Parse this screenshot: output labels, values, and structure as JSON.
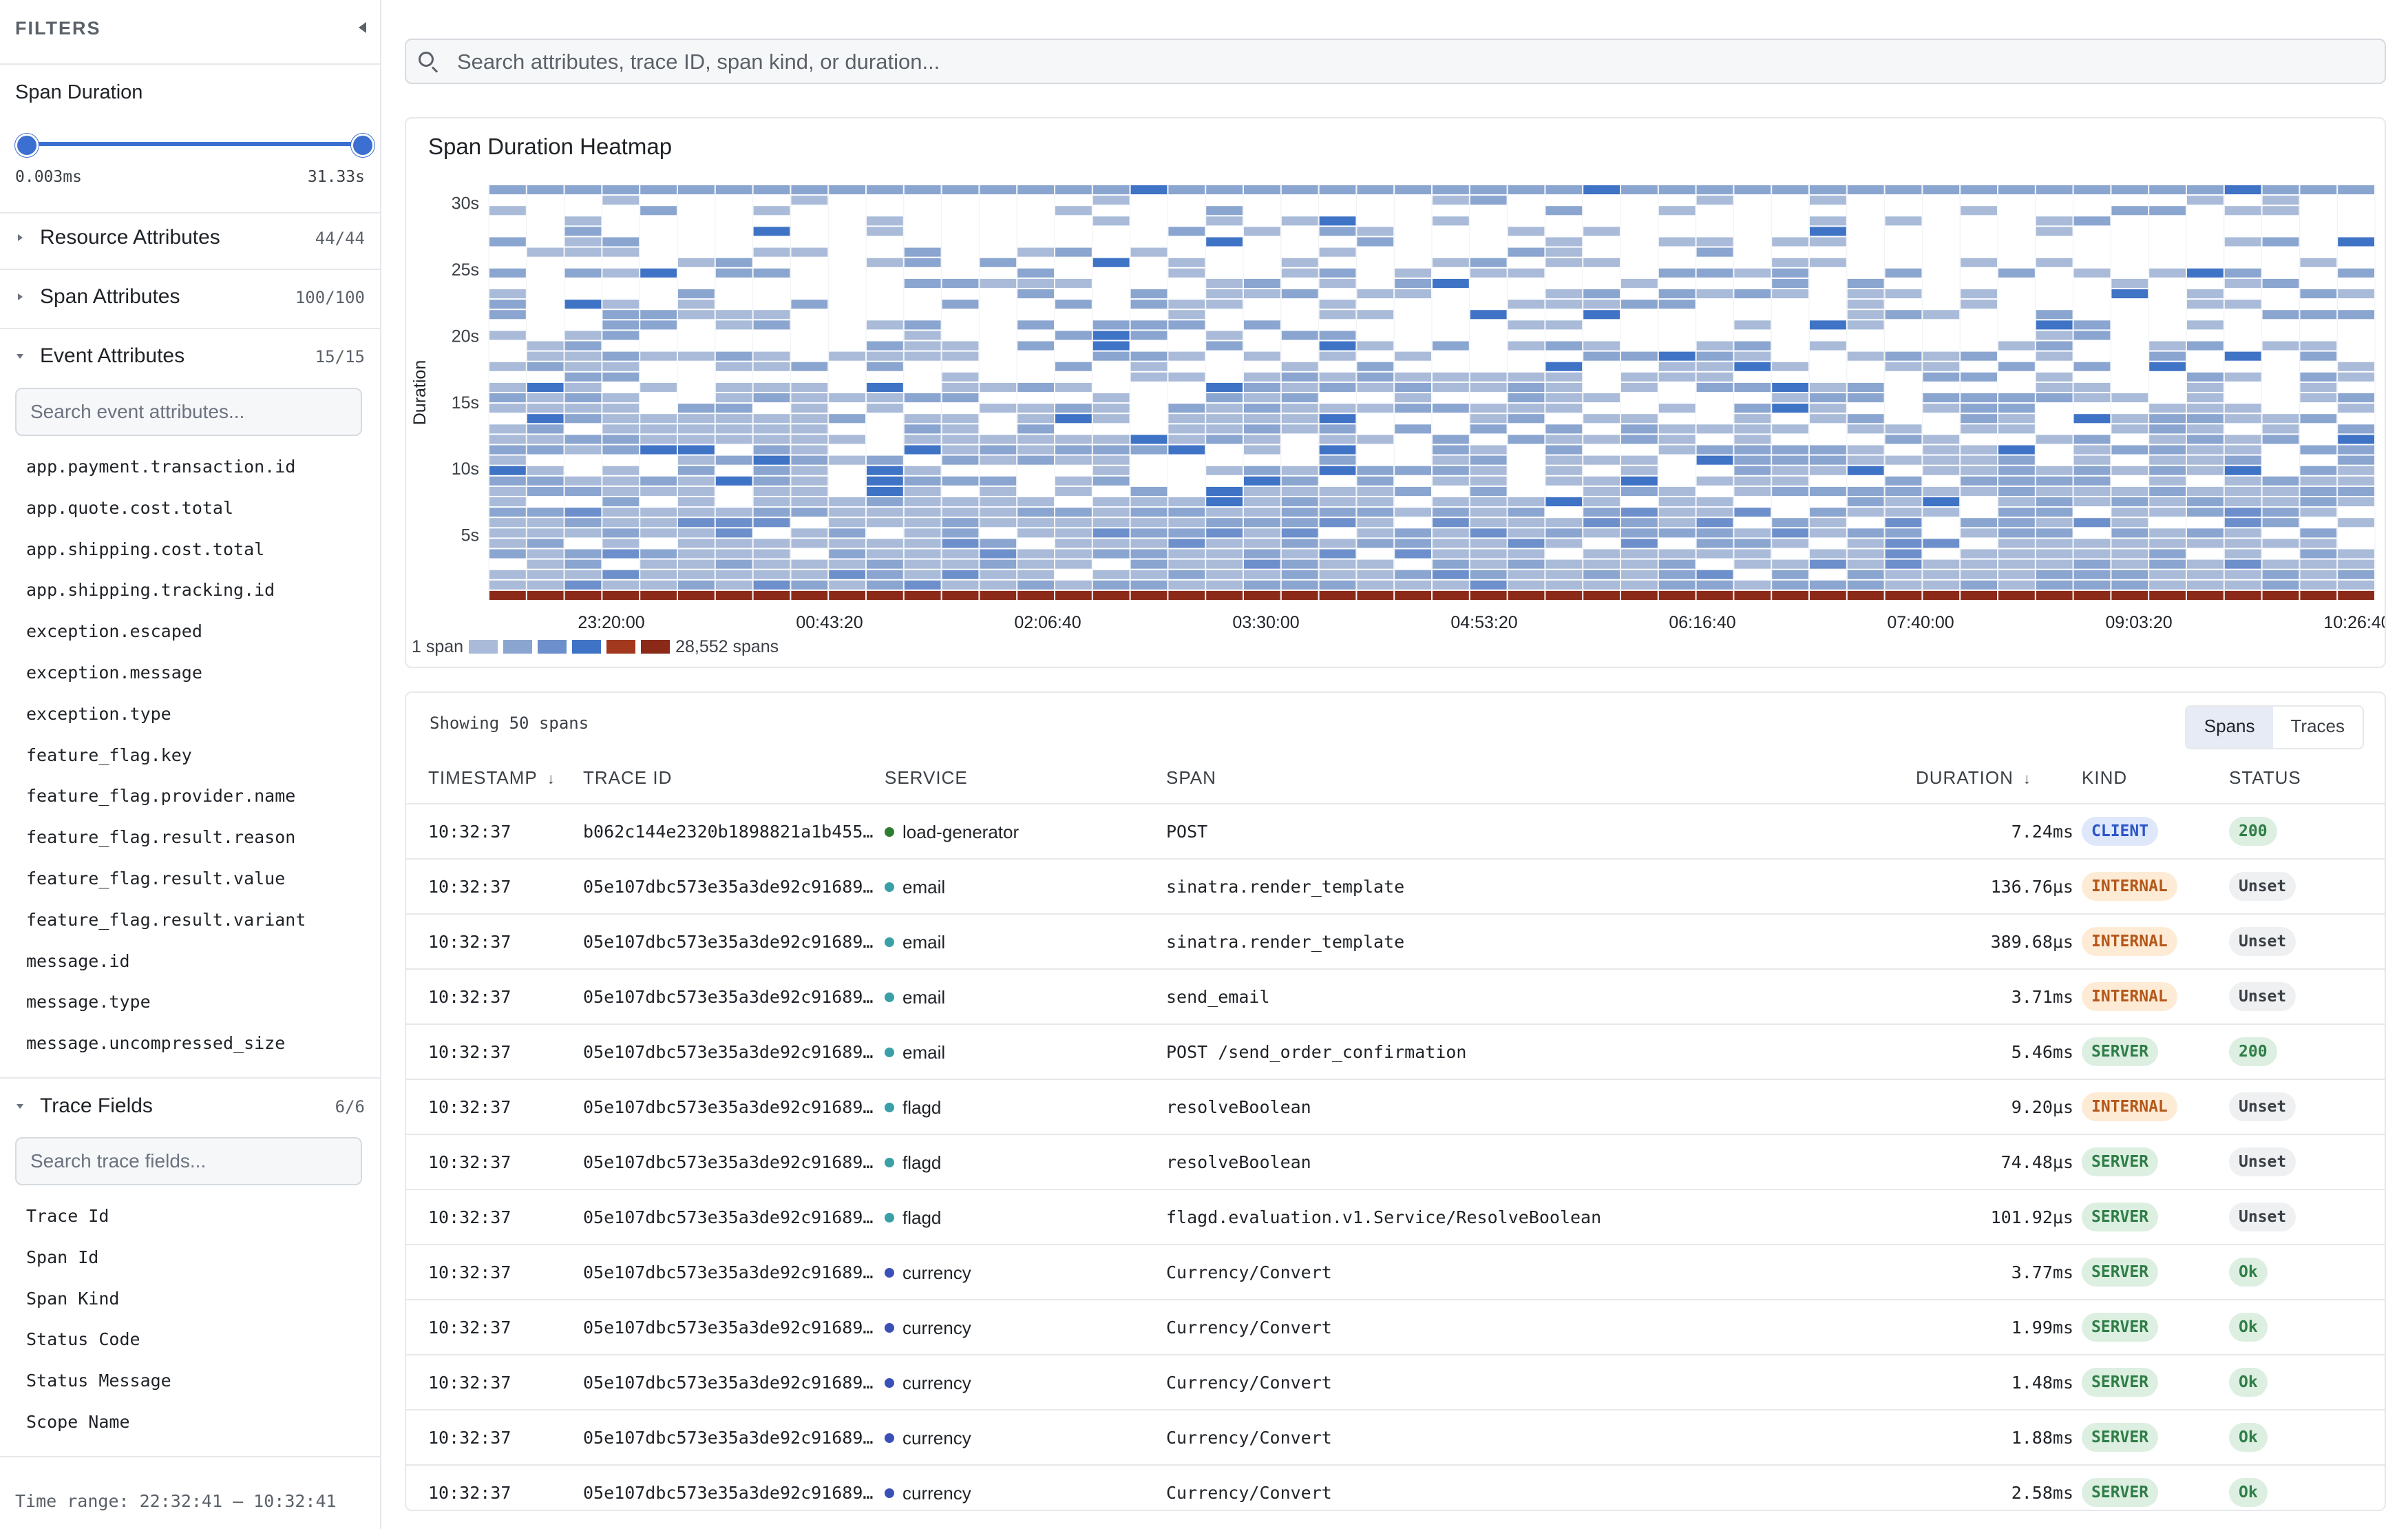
{
  "sidebar": {
    "title": "FILTERS",
    "span_duration": {
      "title": "Span Duration",
      "min_label": "0.003ms",
      "max_label": "31.33s",
      "range": [
        0,
        1
      ]
    },
    "groups": {
      "resource": {
        "label": "Resource Attributes",
        "count": "44/44"
      },
      "span": {
        "label": "Span Attributes",
        "count": "100/100"
      },
      "event": {
        "label": "Event Attributes",
        "count": "15/15",
        "search_placeholder": "Search event attributes..."
      },
      "trace": {
        "label": "Trace Fields",
        "count": "6/6",
        "search_placeholder": "Search trace fields..."
      }
    },
    "event_attributes": [
      "app.payment.transaction.id",
      "app.quote.cost.total",
      "app.shipping.cost.total",
      "app.shipping.tracking.id",
      "exception.escaped",
      "exception.message",
      "exception.type",
      "feature_flag.key",
      "feature_flag.provider.name",
      "feature_flag.result.reason",
      "feature_flag.result.value",
      "feature_flag.result.variant",
      "message.id",
      "message.type",
      "message.uncompressed_size"
    ],
    "trace_fields": [
      "Trace Id",
      "Span Id",
      "Span Kind",
      "Status Code",
      "Status Message",
      "Scope Name"
    ],
    "footer": "Time range: 22:32:41 – 10:32:41"
  },
  "search": {
    "placeholder": "Search attributes, trace ID, span kind, or duration..."
  },
  "chart_data": {
    "type": "heatmap",
    "title": "Span Duration Heatmap",
    "ylabel": "Duration",
    "y_ticks": [
      "30s",
      "25s",
      "20s",
      "15s",
      "10s",
      "5s"
    ],
    "y_tick_values": [
      30,
      25,
      20,
      15,
      10,
      5
    ],
    "ylim": [
      0,
      31.33
    ],
    "x_ticks": [
      "23:20:00",
      "00:43:20",
      "02:06:40",
      "03:30:00",
      "04:53:20",
      "06:16:40",
      "07:40:00",
      "09:03:20",
      "10:26:40"
    ],
    "columns": 50,
    "rows": 40,
    "legend_min": "1 span",
    "legend_max": "28,552 spans",
    "color_scale": [
      "#a9bbd9",
      "#8aa5d0",
      "#6d8fcb",
      "#3f73c6",
      "#a2391e",
      "#8c2a1a"
    ],
    "grid": true
  },
  "table": {
    "showing": "Showing 50 spans",
    "view_toggle": {
      "spans": "Spans",
      "traces": "Traces"
    },
    "columns": {
      "timestamp": "TIMESTAMP",
      "trace_id": "TRACE ID",
      "service": "SERVICE",
      "span": "SPAN",
      "duration": "DURATION",
      "kind": "KIND",
      "status": "STATUS"
    },
    "service_colors": {
      "load-generator": "#2e7d32",
      "email": "#3aa0a8",
      "flagd": "#3aa0a8",
      "currency": "#3b4fb8"
    },
    "rows": [
      {
        "timestamp": "10:32:37",
        "trace_id": "b062c144e2320b1898821a1b455…",
        "service": "load-generator",
        "span": "POST",
        "duration": "7.24ms",
        "kind": "CLIENT",
        "status": "200"
      },
      {
        "timestamp": "10:32:37",
        "trace_id": "05e107dbc573e35a3de92c91689…",
        "service": "email",
        "span": "sinatra.render_template",
        "duration": "136.76μs",
        "kind": "INTERNAL",
        "status": "Unset"
      },
      {
        "timestamp": "10:32:37",
        "trace_id": "05e107dbc573e35a3de92c91689…",
        "service": "email",
        "span": "sinatra.render_template",
        "duration": "389.68μs",
        "kind": "INTERNAL",
        "status": "Unset"
      },
      {
        "timestamp": "10:32:37",
        "trace_id": "05e107dbc573e35a3de92c91689…",
        "service": "email",
        "span": "send_email",
        "duration": "3.71ms",
        "kind": "INTERNAL",
        "status": "Unset"
      },
      {
        "timestamp": "10:32:37",
        "trace_id": "05e107dbc573e35a3de92c91689…",
        "service": "email",
        "span": "POST /send_order_confirmation",
        "duration": "5.46ms",
        "kind": "SERVER",
        "status": "200"
      },
      {
        "timestamp": "10:32:37",
        "trace_id": "05e107dbc573e35a3de92c91689…",
        "service": "flagd",
        "span": "resolveBoolean",
        "duration": "9.20μs",
        "kind": "INTERNAL",
        "status": "Unset"
      },
      {
        "timestamp": "10:32:37",
        "trace_id": "05e107dbc573e35a3de92c91689…",
        "service": "flagd",
        "span": "resolveBoolean",
        "duration": "74.48μs",
        "kind": "SERVER",
        "status": "Unset"
      },
      {
        "timestamp": "10:32:37",
        "trace_id": "05e107dbc573e35a3de92c91689…",
        "service": "flagd",
        "span": "flagd.evaluation.v1.Service/ResolveBoolean",
        "duration": "101.92μs",
        "kind": "SERVER",
        "status": "Unset"
      },
      {
        "timestamp": "10:32:37",
        "trace_id": "05e107dbc573e35a3de92c91689…",
        "service": "currency",
        "span": "Currency/Convert",
        "duration": "3.77ms",
        "kind": "SERVER",
        "status": "Ok"
      },
      {
        "timestamp": "10:32:37",
        "trace_id": "05e107dbc573e35a3de92c91689…",
        "service": "currency",
        "span": "Currency/Convert",
        "duration": "1.99ms",
        "kind": "SERVER",
        "status": "Ok"
      },
      {
        "timestamp": "10:32:37",
        "trace_id": "05e107dbc573e35a3de92c91689…",
        "service": "currency",
        "span": "Currency/Convert",
        "duration": "1.48ms",
        "kind": "SERVER",
        "status": "Ok"
      },
      {
        "timestamp": "10:32:37",
        "trace_id": "05e107dbc573e35a3de92c91689…",
        "service": "currency",
        "span": "Currency/Convert",
        "duration": "1.88ms",
        "kind": "SERVER",
        "status": "Ok"
      },
      {
        "timestamp": "10:32:37",
        "trace_id": "05e107dbc573e35a3de92c91689…",
        "service": "currency",
        "span": "Currency/Convert",
        "duration": "2.58ms",
        "kind": "SERVER",
        "status": "Ok"
      }
    ]
  },
  "badge_colors": {
    "CLIENT": {
      "bg": "#dfe7fb",
      "fg": "#2b56c7"
    },
    "INTERNAL": {
      "bg": "#fdebd6",
      "fg": "#b5571a"
    },
    "SERVER": {
      "bg": "#dcefe1",
      "fg": "#2f7d47"
    },
    "200": {
      "bg": "#dcefe1",
      "fg": "#2f7d47"
    },
    "Ok": {
      "bg": "#dcefe1",
      "fg": "#2f7d47"
    },
    "Unset": {
      "bg": "#eef0f2",
      "fg": "#3b4046"
    }
  }
}
